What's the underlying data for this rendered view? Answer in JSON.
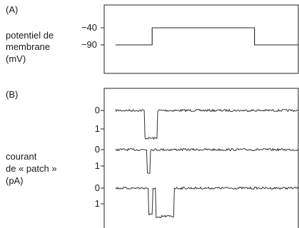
{
  "chart_data": [
    {
      "panel": "(A)",
      "type": "line",
      "ylabel_lines": [
        "potentiel de",
        "membrane",
        "(mV)"
      ],
      "yticks": [
        "−40",
        "−90"
      ],
      "levels": {
        "rest": -90,
        "step": -40
      },
      "step": {
        "start": 0.2,
        "end": 0.76
      },
      "series": [
        {
          "x": [
            0,
            0.2,
            0.2,
            0.76,
            0.76,
            1
          ],
          "y": [
            -90,
            -90,
            -40,
            -40,
            -90,
            -90
          ]
        }
      ]
    },
    {
      "panel": "(B)",
      "type": "line",
      "ylabel_lines": [
        "courant",
        "de « patch »",
        "(pA)"
      ],
      "traces": [
        {
          "ticks": [
            "0",
            "1"
          ],
          "events": [
            {
              "start": 0.16,
              "end": 0.23,
              "amplitude": 1.5
            }
          ]
        },
        {
          "ticks": [
            "0",
            "1"
          ],
          "events": [
            {
              "start": 0.17,
              "end": 0.19,
              "amplitude": 1.4
            }
          ]
        },
        {
          "ticks": [
            "0",
            "1"
          ],
          "events": [
            {
              "start": 0.18,
              "end": 0.2,
              "amplitude": 1.7
            },
            {
              "start": 0.22,
              "end": 0.25,
              "amplitude": 1.9
            },
            {
              "start": 0.25,
              "end": 0.32,
              "amplitude": 1.8
            }
          ]
        }
      ]
    }
  ]
}
